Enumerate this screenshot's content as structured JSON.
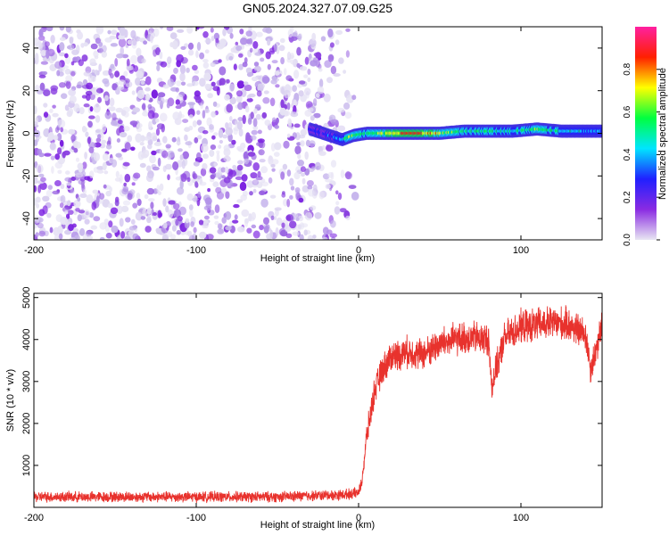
{
  "chart_data": [
    {
      "type": "heatmap",
      "title": "GN05.2024.327.07.09.G25",
      "xlabel": "Height of straight line (km)",
      "ylabel": "Frequency (Hz)",
      "xlim": [
        -200,
        150
      ],
      "ylim": [
        -50,
        50
      ],
      "xticks": [
        -200,
        -100,
        0,
        100
      ],
      "yticks": [
        -40,
        -20,
        0,
        20,
        40
      ],
      "x_tick_labels": [
        "-200",
        "-100",
        "0",
        "100"
      ],
      "y_tick_labels": [
        "-40",
        "-20",
        "0",
        "20",
        "40"
      ],
      "colorbar": {
        "label": "Normalized spectral amplitude",
        "range": [
          0,
          1
        ],
        "ticks": [
          0.0,
          0.2,
          0.4,
          0.6,
          0.8
        ],
        "tick_labels": [
          "0.0",
          "0.2",
          "0.4",
          "0.6",
          "0.8"
        ],
        "colors": [
          "#e8e6f2",
          "#8a2be2",
          "#2020ff",
          "#00e5ff",
          "#00ff40",
          "#ffff00",
          "#ff2000",
          "#ff20a0"
        ]
      },
      "noise_region_x": [
        -200,
        -10
      ],
      "noise_amplitude_range": [
        0.05,
        0.3
      ],
      "signal_ridge": {
        "frequency_hz": 0,
        "points": [
          {
            "x": -30,
            "y": 2,
            "amp": 0.25
          },
          {
            "x": -18,
            "y": -1,
            "amp": 0.3
          },
          {
            "x": -10,
            "y": -3,
            "amp": 0.45
          },
          {
            "x": -3,
            "y": -1,
            "amp": 0.7
          },
          {
            "x": 5,
            "y": 0,
            "amp": 0.5
          },
          {
            "x": 20,
            "y": 0,
            "amp": 0.75
          },
          {
            "x": 35,
            "y": 0,
            "amp": 0.85
          },
          {
            "x": 50,
            "y": 0,
            "amp": 0.7
          },
          {
            "x": 65,
            "y": 1,
            "amp": 0.5
          },
          {
            "x": 80,
            "y": 1,
            "amp": 0.55
          },
          {
            "x": 95,
            "y": 1,
            "amp": 0.45
          },
          {
            "x": 110,
            "y": 2,
            "amp": 0.6
          },
          {
            "x": 125,
            "y": 1,
            "amp": 0.45
          },
          {
            "x": 150,
            "y": 1,
            "amp": 0.4
          }
        ]
      },
      "grid": false
    },
    {
      "type": "line",
      "title": "",
      "xlabel": "Height of straight line (km)",
      "ylabel": "SNR (10 * v/v)",
      "xlim": [
        -200,
        150
      ],
      "ylim": [
        0,
        5100
      ],
      "xticks": [
        -200,
        -100,
        0,
        100
      ],
      "yticks": [
        1000,
        2000,
        3000,
        4000,
        5000
      ],
      "x_tick_labels": [
        "-200",
        "-100",
        "0",
        "100"
      ],
      "y_tick_labels": [
        "1000",
        "2000",
        "3000",
        "4000",
        "5000"
      ],
      "color": "#e8322d",
      "series": [
        {
          "x": [
            -200,
            -150,
            -100,
            -50,
            -10,
            0,
            2,
            5,
            10,
            15,
            20,
            30,
            40,
            50,
            60,
            70,
            80,
            82,
            90,
            100,
            110,
            120,
            130,
            140,
            143,
            150
          ],
          "y": [
            250,
            250,
            250,
            250,
            300,
            350,
            600,
            1700,
            2800,
            3300,
            3600,
            3700,
            3650,
            3900,
            4000,
            4050,
            4000,
            2900,
            4050,
            4300,
            4350,
            4400,
            4350,
            4100,
            3300,
            4300
          ]
        }
      ],
      "noise_band": 150,
      "grid": false
    }
  ]
}
